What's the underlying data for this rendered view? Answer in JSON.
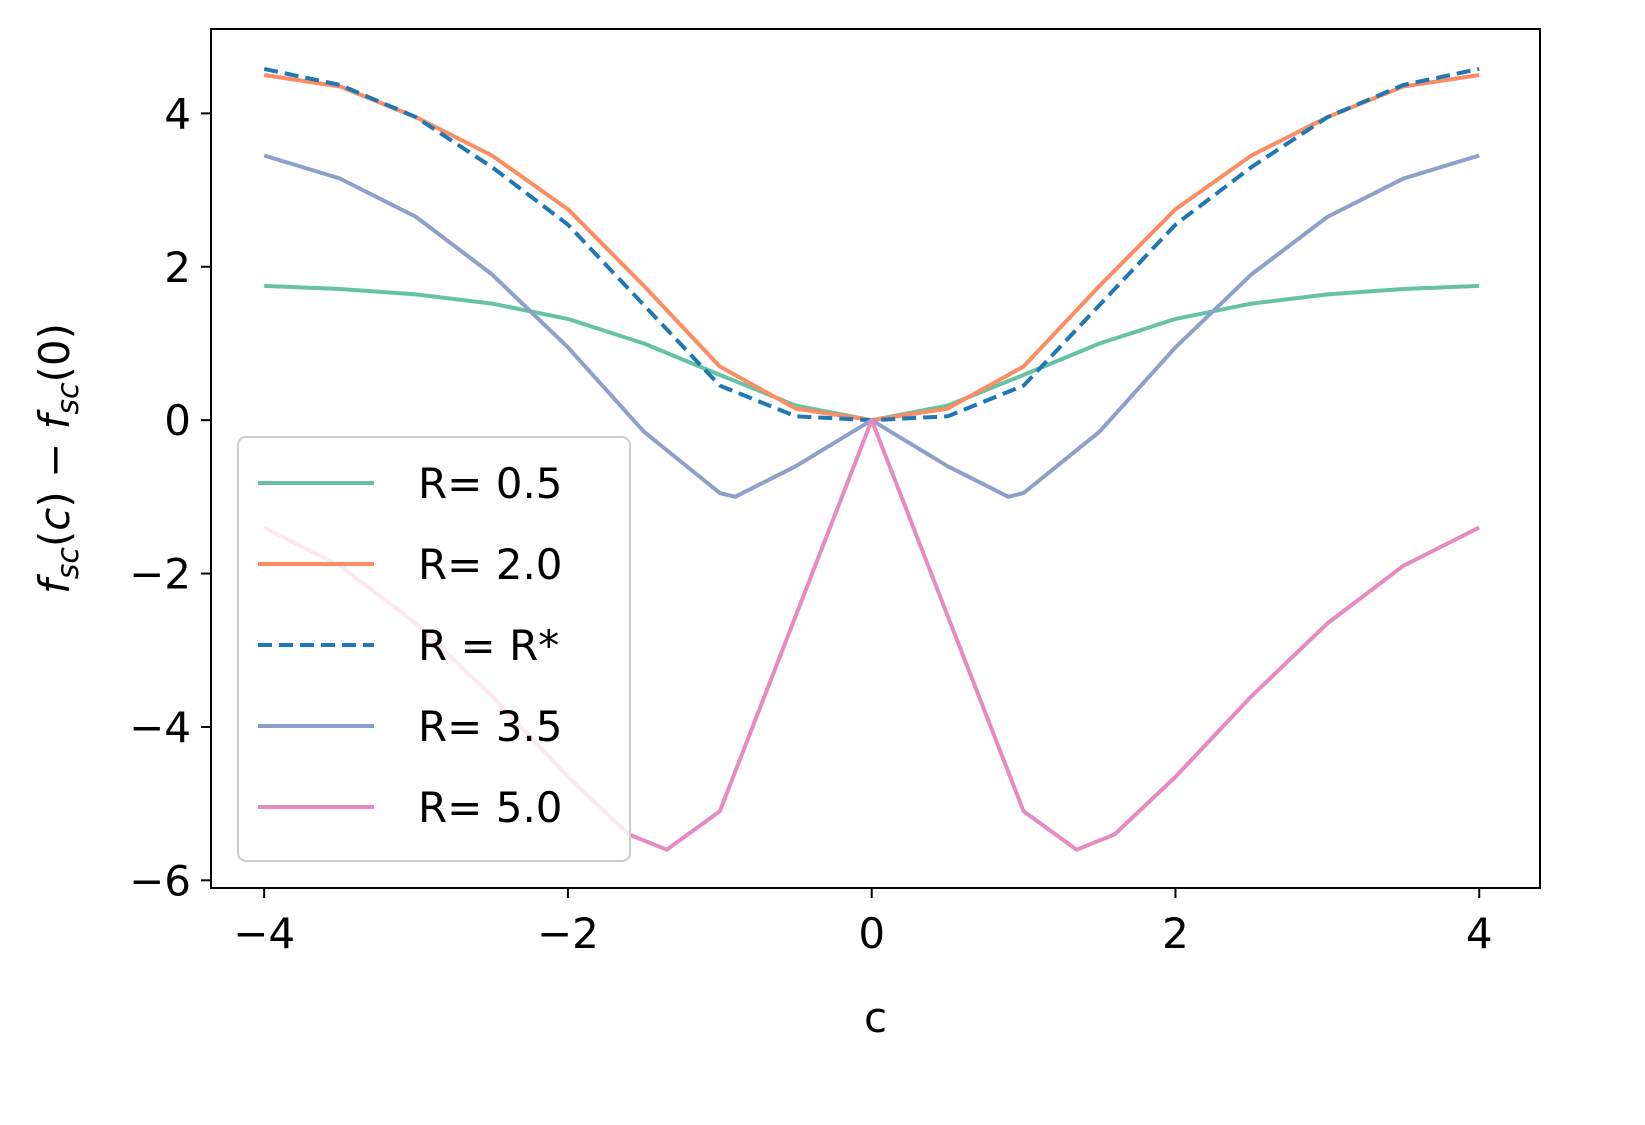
{
  "chart_data": {
    "type": "line",
    "title": "",
    "xlabel": "c",
    "ylabel": {
      "parts": [
        {
          "text": "f",
          "style": "italic"
        },
        {
          "text": "sc",
          "style": "italic-sub"
        },
        {
          "text": "(",
          "style": "normal"
        },
        {
          "text": "c",
          "style": "italic"
        },
        {
          "text": ") − ",
          "style": "normal"
        },
        {
          "text": "f",
          "style": "italic"
        },
        {
          "text": "sc",
          "style": "italic-sub"
        },
        {
          "text": "(0)",
          "style": "normal"
        }
      ]
    },
    "xlim": [
      -4.35,
      4.4
    ],
    "ylim": [
      -6.1,
      5.1
    ],
    "xticks": [
      -4,
      -2,
      0,
      2,
      4
    ],
    "xtick_labels": [
      "−4",
      "−2",
      "0",
      "2",
      "4"
    ],
    "yticks": [
      -6,
      -4,
      -2,
      0,
      2,
      4
    ],
    "ytick_labels": [
      "−6",
      "−4",
      "−2",
      "0",
      "2",
      "4"
    ],
    "grid": false,
    "legend_position": "lower-left",
    "series": [
      {
        "name": "R= 0.5",
        "color": "#66c2a5",
        "dash": "solid",
        "x": [
          -4,
          -3.5,
          -3,
          -2.5,
          -2,
          -1.5,
          -1,
          -0.5,
          0,
          0.5,
          1,
          1.5,
          2,
          2.5,
          3,
          3.5,
          4
        ],
        "y": [
          1.75,
          1.71,
          1.64,
          1.52,
          1.32,
          1.0,
          0.59,
          0.19,
          0.0,
          0.19,
          0.59,
          1.0,
          1.32,
          1.52,
          1.64,
          1.71,
          1.75
        ]
      },
      {
        "name": "R= 2.0",
        "color": "#fc8d62",
        "dash": "solid",
        "x": [
          -4,
          -3.5,
          -3,
          -2.5,
          -2,
          -1.5,
          -1,
          -0.5,
          0,
          0.5,
          1,
          1.5,
          2,
          2.5,
          3,
          3.5,
          4
        ],
        "y": [
          4.5,
          4.35,
          3.95,
          3.45,
          2.75,
          1.75,
          0.7,
          0.15,
          0.0,
          0.15,
          0.7,
          1.75,
          2.75,
          3.45,
          3.95,
          4.35,
          4.5
        ]
      },
      {
        "name": "R = R*",
        "color": "#1f77b4",
        "dash": "dashed",
        "x": [
          -4,
          -3.5,
          -3,
          -2.5,
          -2,
          -1.5,
          -1,
          -0.5,
          0,
          0.5,
          1,
          1.5,
          2,
          2.5,
          3,
          3.5,
          4
        ],
        "y": [
          4.58,
          4.37,
          3.95,
          3.3,
          2.55,
          1.5,
          0.45,
          0.05,
          0.0,
          0.05,
          0.45,
          1.5,
          2.55,
          3.3,
          3.95,
          4.37,
          4.58
        ]
      },
      {
        "name": "R= 3.5",
        "color": "#8da0cb",
        "dash": "solid",
        "x": [
          -4,
          -3.5,
          -3,
          -2.5,
          -2,
          -1.5,
          -1,
          -0.9,
          -0.5,
          0,
          0.5,
          0.9,
          1,
          1.5,
          2,
          2.5,
          3,
          3.5,
          4
        ],
        "y": [
          3.45,
          3.15,
          2.65,
          1.9,
          0.95,
          -0.15,
          -0.95,
          -1.0,
          -0.6,
          0.0,
          -0.6,
          -1.0,
          -0.95,
          -0.15,
          0.95,
          1.9,
          2.65,
          3.15,
          3.45
        ]
      },
      {
        "name": "R= 5.0",
        "color": "#e78ac3",
        "dash": "solid",
        "x": [
          -4,
          -3.5,
          -3,
          -2.5,
          -2,
          -1.6,
          -1.35,
          -1,
          -0.5,
          0,
          0.5,
          1,
          1.35,
          1.6,
          2,
          2.5,
          3,
          3.5,
          4
        ],
        "y": [
          -1.4,
          -1.9,
          -2.65,
          -3.6,
          -4.65,
          -5.4,
          -5.6,
          -5.1,
          -2.55,
          0.0,
          -2.55,
          -5.1,
          -5.6,
          -5.4,
          -4.65,
          -3.6,
          -2.65,
          -1.9,
          -1.4
        ]
      }
    ]
  }
}
